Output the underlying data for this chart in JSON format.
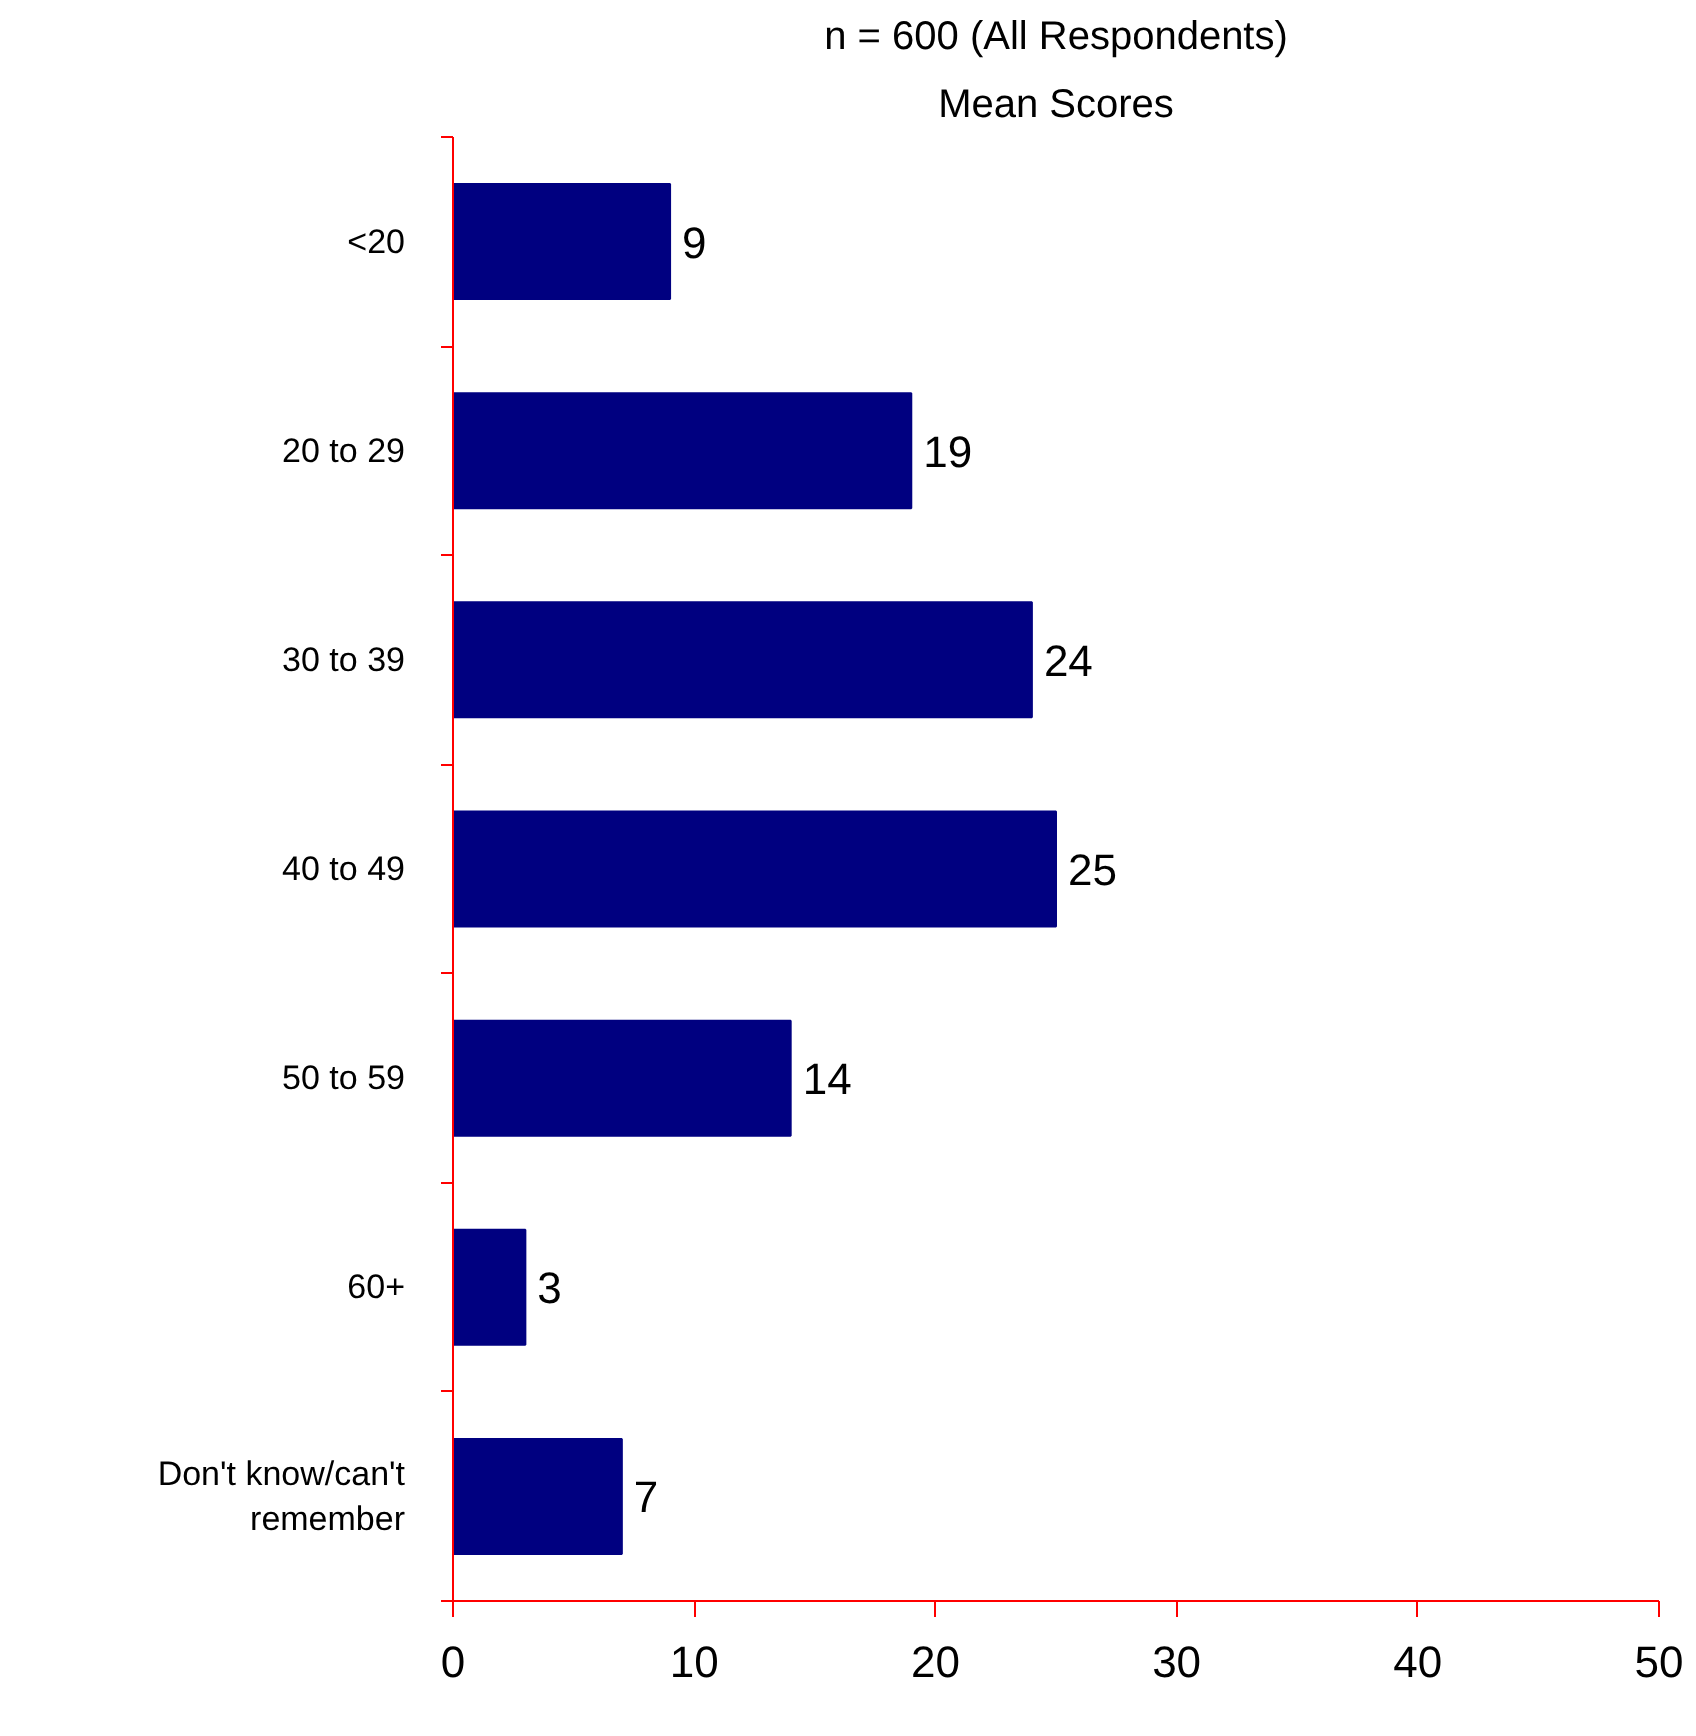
{
  "chart_data": {
    "type": "bar",
    "orientation": "horizontal",
    "title": "n = 600 (All Respondents)",
    "subtitle": "Mean Scores",
    "categories": [
      "<20",
      "20 to 29",
      "30 to 39",
      "40 to 49",
      "50 to 59",
      "60+",
      "Don't know/can't remember"
    ],
    "values": [
      9,
      19,
      24,
      25,
      14,
      3,
      7
    ],
    "color": "#000080",
    "xlim": [
      0,
      50
    ],
    "xticks": [
      0,
      10,
      20,
      30,
      40,
      50
    ],
    "grid": false,
    "data_labels": true
  }
}
